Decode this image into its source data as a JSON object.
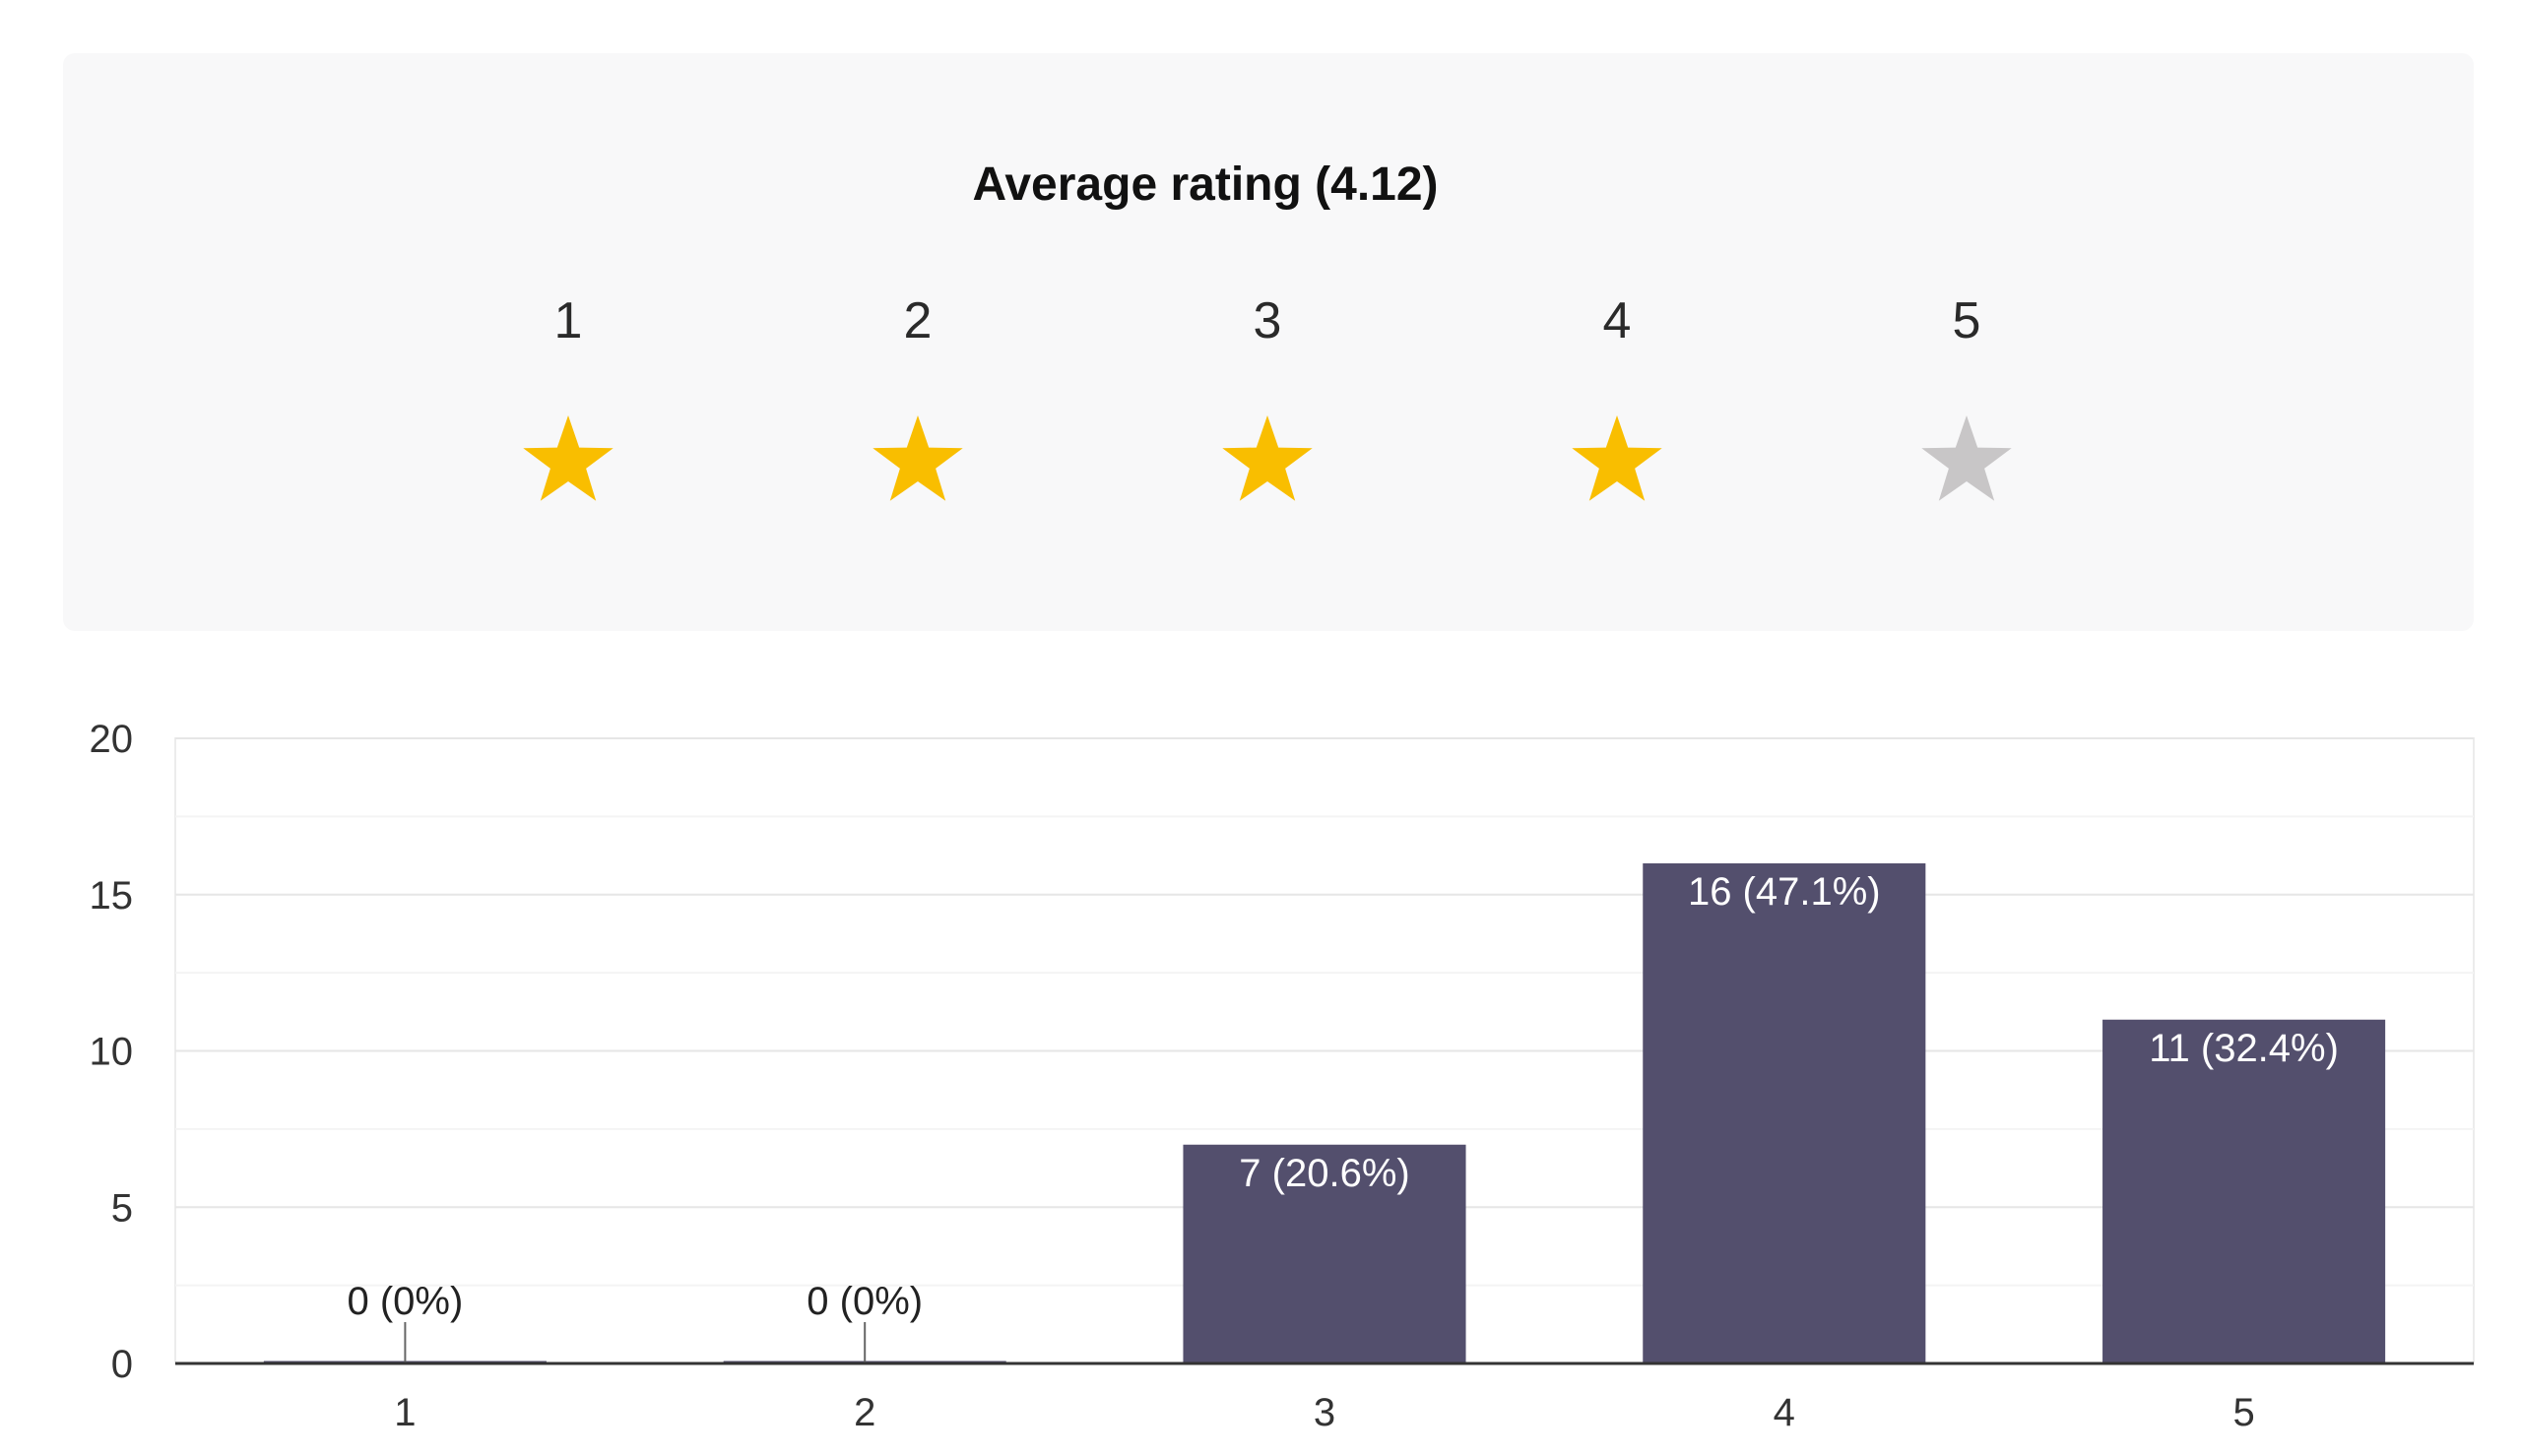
{
  "rating_summary": {
    "title": "Average rating (4.12)",
    "average": 4.12,
    "star_labels": [
      "1",
      "2",
      "3",
      "4",
      "5"
    ],
    "star_icon": "star-icon",
    "filled_color": "#f9be00",
    "empty_color": "#c8c6c7",
    "filled_count": 4
  },
  "chart_data": {
    "type": "bar",
    "categories": [
      "1",
      "2",
      "3",
      "4",
      "5"
    ],
    "values": [
      0,
      0,
      7,
      16,
      11
    ],
    "data_labels": [
      "0 (0%)",
      "0 (0%)",
      "7 (20.6%)",
      "16 (47.1%)",
      "11 (32.4%)"
    ],
    "y_ticks": [
      "0",
      "5",
      "10",
      "15",
      "20"
    ],
    "ylim": [
      0,
      20
    ],
    "grid": true,
    "bar_color": "#534f6d",
    "title": "",
    "xlabel": "",
    "ylabel": ""
  }
}
